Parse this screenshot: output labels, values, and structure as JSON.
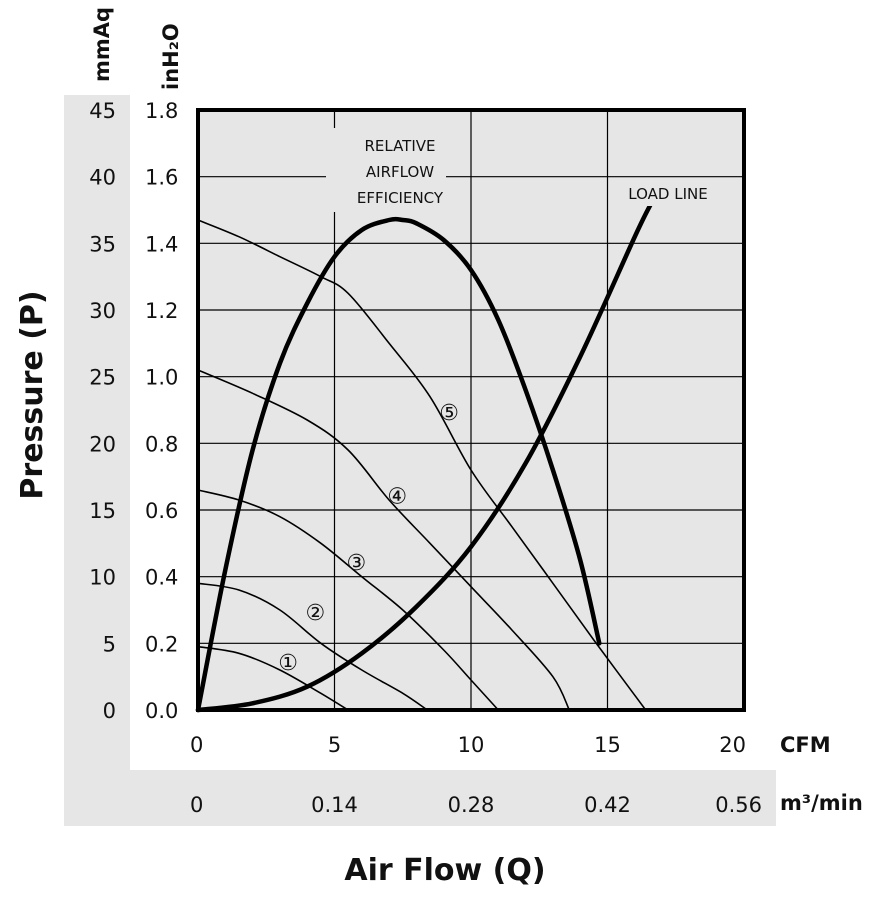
{
  "chart_data": {
    "type": "line",
    "title": "",
    "xlabel": "Air Flow (Q)",
    "ylabel": "Pressure (P)",
    "x_units": [
      "CFM",
      "m³/min"
    ],
    "y_units": [
      "mmAq",
      "inH₂O"
    ],
    "xlim": [
      0,
      20
    ],
    "ylim": [
      0,
      1.8
    ],
    "grid": true,
    "x_ticks_cfm": [
      "0",
      "5",
      "10",
      "15",
      "20"
    ],
    "x_ticks_m3": [
      "0",
      "0.14",
      "0.28",
      "0.42",
      "0.56"
    ],
    "y_ticks_inh2o": [
      "0.0",
      "0.2",
      "0.4",
      "0.6",
      "0.8",
      "1.0",
      "1.2",
      "1.4",
      "1.6",
      "1.8"
    ],
    "y_ticks_mmaq": [
      "0",
      "5",
      "10",
      "15",
      "20",
      "25",
      "30",
      "35",
      "40",
      "45"
    ],
    "series": [
      {
        "label": "①",
        "x": [
          0,
          1.5,
          3,
          4.5,
          5.5
        ],
        "y": [
          0.19,
          0.17,
          0.12,
          0.05,
          0.0
        ]
      },
      {
        "label": "②",
        "x": [
          0,
          1.5,
          3,
          4.5,
          6,
          7.5,
          8.4
        ],
        "y": [
          0.38,
          0.36,
          0.3,
          0.2,
          0.12,
          0.05,
          0.0
        ]
      },
      {
        "label": "③",
        "x": [
          0,
          1.5,
          3,
          4.5,
          6,
          7.5,
          9,
          10,
          11
        ],
        "y": [
          0.66,
          0.63,
          0.58,
          0.5,
          0.4,
          0.3,
          0.18,
          0.09,
          0.0
        ]
      },
      {
        "label": "④",
        "x": [
          0,
          2,
          4,
          5.5,
          7,
          8.5,
          10,
          11.5,
          13,
          13.6
        ],
        "y": [
          1.02,
          0.95,
          0.87,
          0.78,
          0.63,
          0.5,
          0.37,
          0.24,
          0.1,
          0.0
        ]
      },
      {
        "label": "⑤",
        "x": [
          0,
          1.5,
          3,
          4.5,
          5.5,
          7,
          8.5,
          10,
          11.5,
          13,
          14.5,
          16.4
        ],
        "y": [
          1.47,
          1.42,
          1.36,
          1.3,
          1.25,
          1.1,
          0.94,
          0.72,
          0.55,
          0.38,
          0.21,
          0.0
        ]
      }
    ],
    "efficiency_curve": {
      "label": [
        "RELATIVE",
        "AIRFLOW",
        "EFFICIENCY"
      ],
      "x": [
        0,
        1,
        2,
        3,
        4,
        5,
        6,
        7,
        7.5,
        8,
        9,
        10,
        11,
        12,
        13,
        14,
        14.7
      ],
      "y": [
        0,
        0.42,
        0.78,
        1.04,
        1.22,
        1.36,
        1.44,
        1.47,
        1.47,
        1.46,
        1.41,
        1.32,
        1.17,
        0.96,
        0.72,
        0.45,
        0.2
      ]
    },
    "load_line": {
      "label": "LOAD LINE",
      "x": [
        0,
        2,
        4,
        6,
        8,
        10,
        12,
        14,
        16,
        16.6
      ],
      "y": [
        0,
        0.02,
        0.07,
        0.17,
        0.31,
        0.49,
        0.74,
        1.06,
        1.42,
        1.52
      ]
    },
    "curve_label_pos": [
      {
        "x": 3.3,
        "y": 0.12
      },
      {
        "x": 4.3,
        "y": 0.27
      },
      {
        "x": 5.8,
        "y": 0.42
      },
      {
        "x": 7.3,
        "y": 0.62
      },
      {
        "x": 9.2,
        "y": 0.87
      }
    ]
  }
}
